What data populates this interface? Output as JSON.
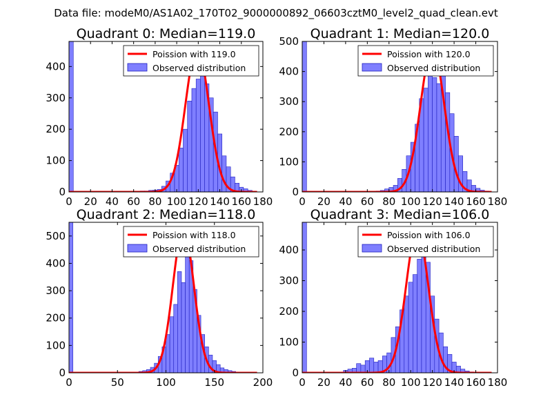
{
  "suptitle": "Data file: modeM0/AS1A02_170T02_9000000892_06603cztM0_level2_quad_clean.evt",
  "colors": {
    "hist_fill": "#7f7fff",
    "hist_edge": "#1f1fbf",
    "poisson_line": "#ff0000"
  },
  "chart_data": [
    {
      "type": "bar",
      "title": "Quadrant 0: Median=119.0",
      "legend": [
        "Poission with 119.0",
        "Observed distribution"
      ],
      "legend_loc": "top-right",
      "xlim": [
        0,
        180
      ],
      "ylim": [
        0,
        480
      ],
      "xticks": [
        0,
        20,
        40,
        60,
        80,
        100,
        120,
        140,
        160,
        180
      ],
      "xtick_labels": [
        "0",
        "20",
        "40",
        "60",
        "80",
        "100",
        "120",
        "140",
        "160",
        "180"
      ],
      "yticks": [
        0,
        100,
        200,
        300,
        400
      ],
      "ytick_labels": [
        "0",
        "100",
        "200",
        "300",
        "400"
      ],
      "median": 119.0,
      "poisson_peak": 460,
      "bins": [
        [
          0,
          4,
          480
        ],
        [
          66,
          4,
          3
        ],
        [
          70,
          4,
          3
        ],
        [
          74,
          4,
          5
        ],
        [
          78,
          4,
          6
        ],
        [
          82,
          4,
          8
        ],
        [
          86,
          4,
          18
        ],
        [
          90,
          4,
          35
        ],
        [
          94,
          4,
          60
        ],
        [
          98,
          4,
          85
        ],
        [
          102,
          4,
          140
        ],
        [
          106,
          4,
          200
        ],
        [
          110,
          4,
          290
        ],
        [
          114,
          4,
          330
        ],
        [
          118,
          4,
          360
        ],
        [
          122,
          4,
          370
        ],
        [
          126,
          4,
          345
        ],
        [
          130,
          4,
          300
        ],
        [
          134,
          4,
          255
        ],
        [
          138,
          4,
          185
        ],
        [
          142,
          4,
          115
        ],
        [
          146,
          4,
          80
        ],
        [
          150,
          4,
          48
        ],
        [
          154,
          4,
          28
        ],
        [
          158,
          4,
          15
        ],
        [
          162,
          4,
          10
        ],
        [
          166,
          4,
          5
        ],
        [
          170,
          4,
          2
        ]
      ]
    },
    {
      "type": "bar",
      "title": "Quadrant 1: Median=120.0",
      "legend": [
        "Poission with 120.0",
        "Observed distribution"
      ],
      "legend_loc": "top-right",
      "xlim": [
        0,
        180
      ],
      "ylim": [
        0,
        500
      ],
      "xticks": [
        0,
        20,
        40,
        60,
        80,
        100,
        120,
        140,
        160,
        180
      ],
      "xtick_labels": [
        "0",
        "20",
        "40",
        "60",
        "80",
        "100",
        "120",
        "140",
        "160",
        "180"
      ],
      "yticks": [
        0,
        100,
        200,
        300,
        400,
        500
      ],
      "ytick_labels": [
        "0",
        "100",
        "200",
        "300",
        "400",
        "500"
      ],
      "median": 120.0,
      "poisson_peak": 478,
      "bins": [
        [
          0,
          4,
          500
        ],
        [
          68,
          4,
          3
        ],
        [
          72,
          4,
          5
        ],
        [
          76,
          4,
          10
        ],
        [
          80,
          4,
          15
        ],
        [
          84,
          4,
          22
        ],
        [
          88,
          4,
          45
        ],
        [
          92,
          4,
          75
        ],
        [
          96,
          4,
          120
        ],
        [
          100,
          4,
          165
        ],
        [
          104,
          4,
          225
        ],
        [
          108,
          4,
          310
        ],
        [
          112,
          4,
          345
        ],
        [
          116,
          4,
          440
        ],
        [
          120,
          4,
          380
        ],
        [
          124,
          4,
          360
        ],
        [
          128,
          4,
          400
        ],
        [
          132,
          4,
          330
        ],
        [
          136,
          4,
          260
        ],
        [
          140,
          4,
          185
        ],
        [
          144,
          4,
          120
        ],
        [
          148,
          4,
          68
        ],
        [
          152,
          4,
          40
        ],
        [
          156,
          4,
          22
        ],
        [
          160,
          4,
          12
        ],
        [
          164,
          4,
          6
        ],
        [
          168,
          4,
          3
        ]
      ]
    },
    {
      "type": "bar",
      "title": "Quadrant 2: Median=118.0",
      "legend": [
        "Poission with 118.0",
        "Observed distribution"
      ],
      "legend_loc": "top-right",
      "xlim": [
        0,
        200
      ],
      "ylim": [
        0,
        550
      ],
      "xticks": [
        0,
        50,
        100,
        150,
        200
      ],
      "xtick_labels": [
        "0",
        "50",
        "100",
        "150",
        "200"
      ],
      "yticks": [
        0,
        100,
        200,
        300,
        400,
        500
      ],
      "ytick_labels": [
        "0",
        "100",
        "200",
        "300",
        "400",
        "500"
      ],
      "median": 118.0,
      "poisson_peak": 525,
      "bins": [
        [
          0,
          4,
          550
        ],
        [
          72,
          4,
          5
        ],
        [
          76,
          4,
          8
        ],
        [
          80,
          4,
          12
        ],
        [
          84,
          4,
          20
        ],
        [
          88,
          4,
          35
        ],
        [
          92,
          4,
          60
        ],
        [
          96,
          4,
          95
        ],
        [
          100,
          4,
          140
        ],
        [
          104,
          4,
          205
        ],
        [
          108,
          4,
          250
        ],
        [
          112,
          4,
          370
        ],
        [
          116,
          4,
          330
        ],
        [
          120,
          4,
          480
        ],
        [
          124,
          4,
          410
        ],
        [
          128,
          4,
          305
        ],
        [
          132,
          4,
          210
        ],
        [
          136,
          4,
          140
        ],
        [
          140,
          4,
          95
        ],
        [
          144,
          4,
          65
        ],
        [
          148,
          4,
          45
        ],
        [
          152,
          4,
          30
        ],
        [
          156,
          4,
          18
        ],
        [
          160,
          4,
          12
        ],
        [
          164,
          4,
          8
        ],
        [
          168,
          4,
          5
        ],
        [
          172,
          4,
          3
        ]
      ]
    },
    {
      "type": "bar",
      "title": "Quadrant 3: Median=106.0",
      "legend": [
        "Poission with 106.0",
        "Observed distribution"
      ],
      "legend_loc": "top-right",
      "xlim": [
        0,
        180
      ],
      "ylim": [
        0,
        490
      ],
      "xticks": [
        0,
        20,
        40,
        60,
        80,
        100,
        120,
        140,
        160,
        180
      ],
      "xtick_labels": [
        "0",
        "20",
        "40",
        "60",
        "80",
        "100",
        "120",
        "140",
        "160",
        "180"
      ],
      "yticks": [
        0,
        100,
        200,
        300,
        400
      ],
      "ytick_labels": [
        "0",
        "100",
        "200",
        "300",
        "400"
      ],
      "median": 106.0,
      "poisson_peak": 465,
      "bins": [
        [
          0,
          4,
          490
        ],
        [
          38,
          4,
          8
        ],
        [
          42,
          4,
          12
        ],
        [
          46,
          4,
          15
        ],
        [
          50,
          4,
          30
        ],
        [
          54,
          4,
          25
        ],
        [
          58,
          4,
          40
        ],
        [
          62,
          4,
          48
        ],
        [
          66,
          4,
          35
        ],
        [
          70,
          4,
          40
        ],
        [
          74,
          4,
          55
        ],
        [
          78,
          4,
          65
        ],
        [
          82,
          4,
          115
        ],
        [
          86,
          4,
          150
        ],
        [
          90,
          4,
          205
        ],
        [
          94,
          4,
          250
        ],
        [
          98,
          4,
          295
        ],
        [
          102,
          4,
          320
        ],
        [
          106,
          4,
          370
        ],
        [
          110,
          4,
          425
        ],
        [
          114,
          4,
          360
        ],
        [
          118,
          4,
          250
        ],
        [
          122,
          4,
          175
        ],
        [
          126,
          4,
          130
        ],
        [
          130,
          4,
          85
        ],
        [
          134,
          4,
          60
        ],
        [
          138,
          4,
          35
        ],
        [
          142,
          4,
          22
        ],
        [
          146,
          4,
          12
        ],
        [
          150,
          4,
          6
        ],
        [
          154,
          4,
          3
        ]
      ]
    }
  ]
}
